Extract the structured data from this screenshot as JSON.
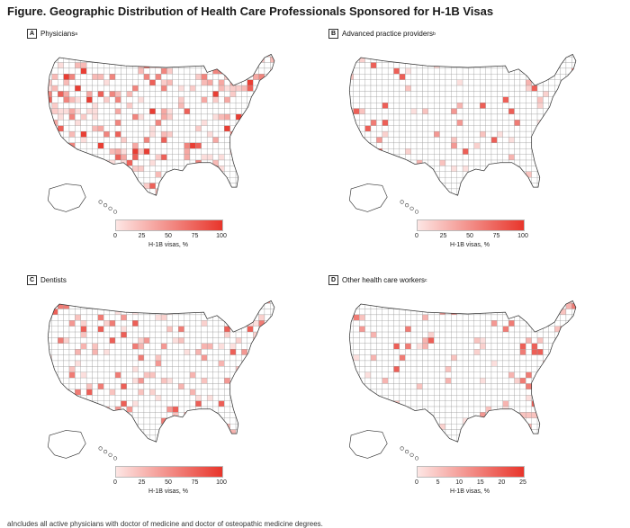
{
  "figure": {
    "label": "Figure.",
    "title": "Geographic Distribution of Health Care Professionals Sponsored for H-1B Visas"
  },
  "colors": {
    "low": "#fde6e4",
    "high": "#e8352b",
    "border": "#9a9a9a",
    "outline": "#333333"
  },
  "panels": [
    {
      "letter": "A",
      "title": "Physicians",
      "superscript": "a",
      "axis_label": "H-1B visas, %",
      "ticks": [
        "0",
        "25",
        "50",
        "75",
        "100"
      ],
      "tick_values": [
        0,
        25,
        50,
        75,
        100
      ],
      "max": 100
    },
    {
      "letter": "B",
      "title": "Advanced practice providers",
      "superscript": "b",
      "axis_label": "H-1B visas, %",
      "ticks": [
        "0",
        "25",
        "50",
        "75",
        "100"
      ],
      "tick_values": [
        0,
        25,
        50,
        75,
        100
      ],
      "max": 100
    },
    {
      "letter": "C",
      "title": "Dentists",
      "superscript": "",
      "axis_label": "H-1B visas, %",
      "ticks": [
        "0",
        "25",
        "50",
        "75",
        "100"
      ],
      "tick_values": [
        0,
        25,
        50,
        75,
        100
      ],
      "max": 100
    },
    {
      "letter": "D",
      "title": "Other health care workers",
      "superscript": "c",
      "axis_label": "H-1B visas, %",
      "ticks": [
        "0",
        "5",
        "10",
        "15",
        "20",
        "25"
      ],
      "tick_values": [
        0,
        5,
        10,
        15,
        20,
        25
      ],
      "max": 25
    }
  ],
  "footnote": "aIncludes all active physicians with doctor of medicine and doctor of osteopathic medicine degrees."
}
